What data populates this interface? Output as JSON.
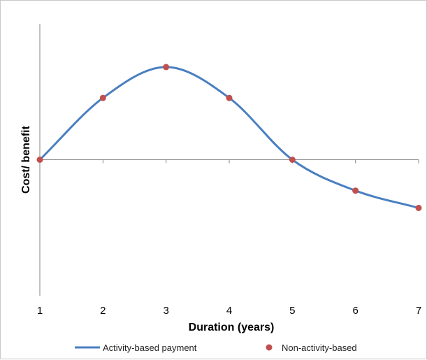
{
  "chart_data": {
    "type": "line",
    "title": "",
    "xlabel": "Duration (years)",
    "ylabel": "Cost/ benefit",
    "x": [
      1,
      2,
      3,
      4,
      5,
      6,
      7
    ],
    "xlim": [
      1,
      7
    ],
    "ylim": [
      -2.2,
      2.2
    ],
    "grid": false,
    "legend_position": "bottom",
    "series": [
      {
        "name": "Activity-based payment",
        "render": "smooth-line",
        "color": "#4a7fc1",
        "values": [
          0,
          1,
          1.5,
          1,
          0,
          -0.5,
          -0.78
        ]
      },
      {
        "name": "Non-activity-based",
        "render": "markers",
        "color": "#c0504d",
        "values": [
          0,
          1,
          1.5,
          1,
          0,
          -0.5,
          -0.78
        ]
      }
    ]
  }
}
